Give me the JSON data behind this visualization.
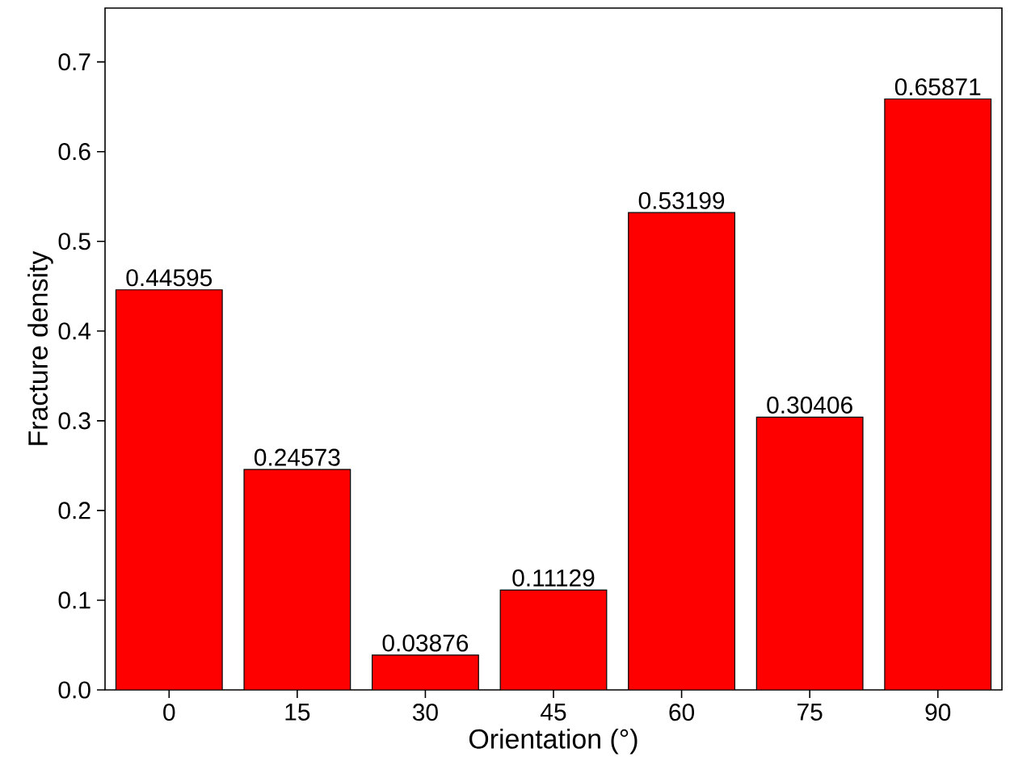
{
  "chart_data": {
    "type": "bar",
    "xlabel": "Orientation (°)",
    "ylabel": "Fracture density",
    "categories": [
      "0",
      "15",
      "30",
      "45",
      "60",
      "75",
      "90"
    ],
    "values": [
      0.44595,
      0.24573,
      0.03876,
      0.11129,
      0.53199,
      0.30406,
      0.65871
    ],
    "value_labels": [
      "0.44595",
      "0.24573",
      "0.03876",
      "0.11129",
      "0.53199",
      "0.30406",
      "0.65871"
    ],
    "color": "#ff0000",
    "ylim": [
      0,
      0.76
    ],
    "yticks": [
      {
        "value": 0,
        "label": "0.0"
      },
      0.1,
      0.2,
      0.3,
      0.4,
      0.5,
      0.6,
      0.7
    ],
    "grid": false
  }
}
